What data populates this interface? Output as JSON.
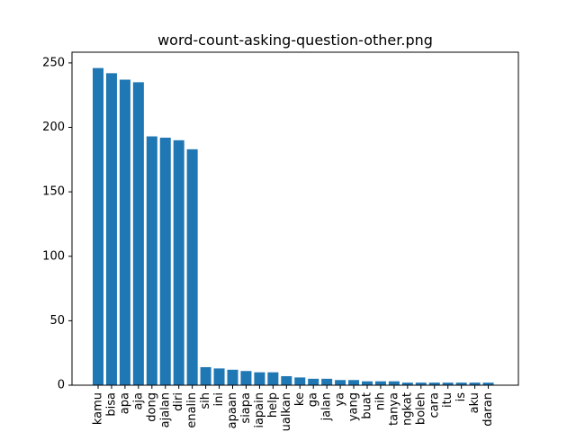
{
  "chart_data": {
    "type": "bar",
    "title": "word-count-asking-question-other.png",
    "xlabel": "",
    "ylabel": "",
    "ylim": [
      0,
      250
    ],
    "yticks": [
      0,
      50,
      100,
      150,
      200,
      250
    ],
    "bar_color": "#1f77b4",
    "grid": false,
    "categories": [
      "kamu",
      "bisa",
      "apa",
      "aja",
      "dong",
      "ajalan",
      "diri",
      "enalin",
      "sih",
      "ini",
      "apaan",
      "siapa",
      "iapain",
      "help",
      "ualkan",
      "ke",
      "ga",
      "jalan",
      "ya",
      "yang",
      "buat",
      "nih",
      "tanya",
      "ngkat",
      "boleh",
      "cara",
      "itu",
      "is",
      "aku",
      "daran"
    ],
    "values": [
      246,
      242,
      237,
      235,
      193,
      192,
      190,
      183,
      14,
      13,
      12,
      11,
      10,
      10,
      7,
      6,
      5,
      5,
      4,
      4,
      3,
      3,
      3,
      2,
      2,
      2,
      2,
      2,
      2,
      2
    ]
  }
}
